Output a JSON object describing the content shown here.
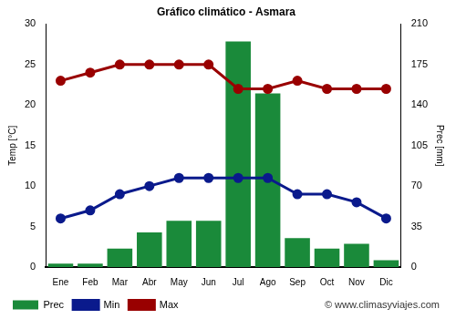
{
  "chart_data": {
    "type": "bar",
    "title": "Gráfico climático - Asmara",
    "categories": [
      "Ene",
      "Feb",
      "Mar",
      "Abr",
      "May",
      "Jun",
      "Jul",
      "Ago",
      "Sep",
      "Oct",
      "Nov",
      "Dic"
    ],
    "series": [
      {
        "name": "Prec",
        "type": "bar",
        "color": "#1a8a3a",
        "axis": "y2",
        "values": [
          3,
          3,
          16,
          30,
          40,
          40,
          195,
          150,
          25,
          16,
          20,
          6
        ]
      },
      {
        "name": "Min",
        "type": "line",
        "color": "#0a1a8c",
        "marker": "circle",
        "values": [
          6,
          7,
          9,
          10,
          11,
          11,
          11,
          11,
          9,
          9,
          8,
          6
        ]
      },
      {
        "name": "Max",
        "type": "line",
        "color": "#990000",
        "marker": "circle",
        "values": [
          23,
          24,
          25,
          25,
          25,
          25,
          22,
          22,
          23,
          22,
          22,
          22
        ]
      }
    ],
    "y_label": "Temp [°C]",
    "y2_label": "Prec [mm]",
    "ylim": [
      0,
      30
    ],
    "yticks": [
      0,
      5,
      10,
      15,
      20,
      25,
      30
    ],
    "y2lim": [
      0,
      210
    ],
    "y2ticks": [
      0,
      35,
      70,
      105,
      140,
      175,
      210
    ],
    "grid": false,
    "legend": "bottom left",
    "annotations": [
      "© www.climasyviajes.com"
    ]
  }
}
